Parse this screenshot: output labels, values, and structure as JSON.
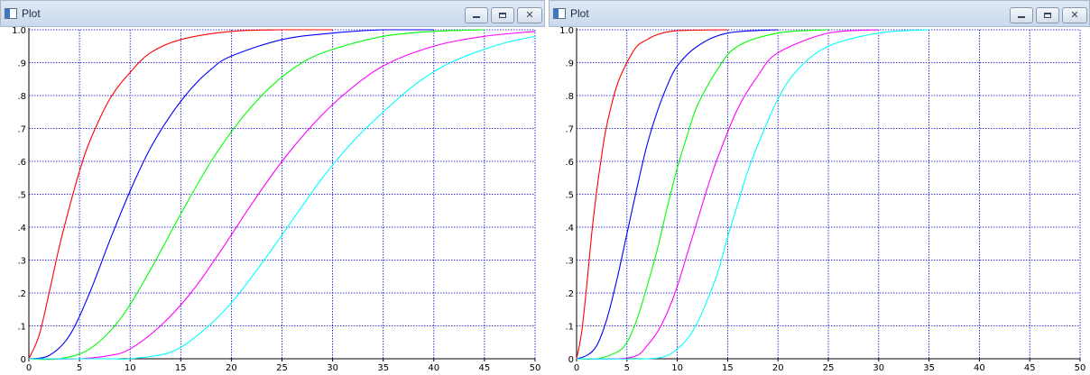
{
  "windows": [
    {
      "title": "Plot",
      "controls": [
        "minimize",
        "maximize",
        "close"
      ]
    },
    {
      "title": "Plot",
      "controls": [
        "minimize",
        "maximize",
        "close"
      ]
    }
  ],
  "chart_data": [
    {
      "type": "line",
      "xlim": [
        0,
        50
      ],
      "ylim": [
        0,
        1.0
      ],
      "x_ticks": [
        "0",
        "5",
        "10",
        "15",
        "20",
        "25",
        "30",
        "35",
        "40",
        "45",
        "50"
      ],
      "y_ticks": [
        "0",
        ".1",
        ".2",
        ".3",
        ".4",
        ".5",
        ".6",
        ".7",
        ".8",
        ".9",
        "1.0"
      ],
      "grid": true,
      "grid_color": "#0000cc",
      "series": [
        {
          "color": "#ff0000",
          "x": [
            0,
            1,
            2,
            3,
            4,
            5,
            6,
            8,
            10,
            12,
            15,
            20,
            25,
            30
          ],
          "y": [
            0,
            0.07,
            0.2,
            0.34,
            0.46,
            0.57,
            0.66,
            0.79,
            0.87,
            0.93,
            0.97,
            0.995,
            1.0,
            1.0
          ]
        },
        {
          "color": "#0000ff",
          "x": [
            0,
            2,
            4,
            6,
            8,
            10,
            12,
            14,
            16,
            18,
            20,
            25,
            30,
            35,
            40
          ],
          "y": [
            0,
            0.01,
            0.07,
            0.2,
            0.36,
            0.51,
            0.64,
            0.74,
            0.82,
            0.88,
            0.92,
            0.97,
            0.99,
            1.0,
            1.0
          ]
        },
        {
          "color": "#00ff00",
          "x": [
            0,
            3,
            6,
            9,
            12,
            15,
            18,
            21,
            24,
            27,
            30,
            35,
            40,
            45
          ],
          "y": [
            0,
            0.0,
            0.03,
            0.12,
            0.27,
            0.44,
            0.6,
            0.73,
            0.83,
            0.9,
            0.94,
            0.98,
            0.995,
            1.0
          ]
        },
        {
          "color": "#ff00ff",
          "x": [
            0,
            5,
            8,
            10,
            13,
            16,
            19,
            22,
            25,
            28,
            31,
            35,
            40,
            45,
            50
          ],
          "y": [
            0,
            0.0,
            0.01,
            0.03,
            0.1,
            0.2,
            0.33,
            0.47,
            0.6,
            0.71,
            0.8,
            0.89,
            0.95,
            0.98,
            0.995
          ]
        },
        {
          "color": "#00ffff",
          "x": [
            0,
            8,
            10,
            14,
            17,
            20,
            23,
            26,
            29,
            32,
            35,
            38,
            41,
            44,
            47,
            50
          ],
          "y": [
            0,
            0.0,
            0.0,
            0.02,
            0.08,
            0.17,
            0.29,
            0.42,
            0.55,
            0.66,
            0.75,
            0.83,
            0.89,
            0.93,
            0.96,
            0.98
          ]
        }
      ]
    },
    {
      "type": "line",
      "xlim": [
        0,
        50
      ],
      "ylim": [
        0,
        1.0
      ],
      "x_ticks": [
        "0",
        "5",
        "10",
        "15",
        "20",
        "25",
        "30",
        "35",
        "40",
        "45",
        "50"
      ],
      "y_ticks": [
        "0",
        ".1",
        ".2",
        ".3",
        ".4",
        ".5",
        ".6",
        ".7",
        ".8",
        ".9",
        "1.0"
      ],
      "grid": true,
      "grid_color": "#0000cc",
      "series": [
        {
          "color": "#ff0000",
          "x": [
            0,
            0.5,
            1,
            1.5,
            2,
            2.5,
            3,
            4,
            5,
            6,
            7,
            8,
            10,
            15
          ],
          "y": [
            0,
            0.08,
            0.22,
            0.38,
            0.51,
            0.62,
            0.71,
            0.83,
            0.9,
            0.95,
            0.97,
            0.985,
            0.997,
            1.0
          ]
        },
        {
          "color": "#0000ff",
          "x": [
            0,
            1,
            2,
            3,
            4,
            5,
            6,
            7,
            8,
            9,
            10,
            12,
            15,
            20
          ],
          "y": [
            0,
            0.01,
            0.04,
            0.12,
            0.24,
            0.38,
            0.52,
            0.65,
            0.75,
            0.83,
            0.89,
            0.95,
            0.99,
            1.0
          ]
        },
        {
          "color": "#00ff00",
          "x": [
            0,
            2,
            4,
            5,
            6,
            7,
            8,
            9,
            10,
            11,
            12,
            14,
            16,
            20,
            25
          ],
          "y": [
            0,
            0.0,
            0.02,
            0.05,
            0.12,
            0.22,
            0.33,
            0.46,
            0.58,
            0.68,
            0.77,
            0.88,
            0.95,
            0.99,
            1.0
          ]
        },
        {
          "color": "#ff00ff",
          "x": [
            0,
            4,
            6,
            7,
            8,
            9,
            10,
            11,
            12,
            13,
            14,
            16,
            18,
            20,
            25,
            30
          ],
          "y": [
            0,
            0.0,
            0.01,
            0.04,
            0.08,
            0.14,
            0.22,
            0.32,
            0.42,
            0.52,
            0.61,
            0.76,
            0.86,
            0.93,
            0.99,
            1.0
          ]
        },
        {
          "color": "#00ffff",
          "x": [
            0,
            7,
            9,
            10,
            11,
            12,
            13,
            14,
            15,
            16,
            17,
            18,
            20,
            22,
            25,
            30,
            35
          ],
          "y": [
            0,
            0.0,
            0.01,
            0.03,
            0.06,
            0.11,
            0.18,
            0.26,
            0.37,
            0.47,
            0.57,
            0.65,
            0.79,
            0.88,
            0.95,
            0.99,
            1.0
          ]
        }
      ]
    }
  ]
}
